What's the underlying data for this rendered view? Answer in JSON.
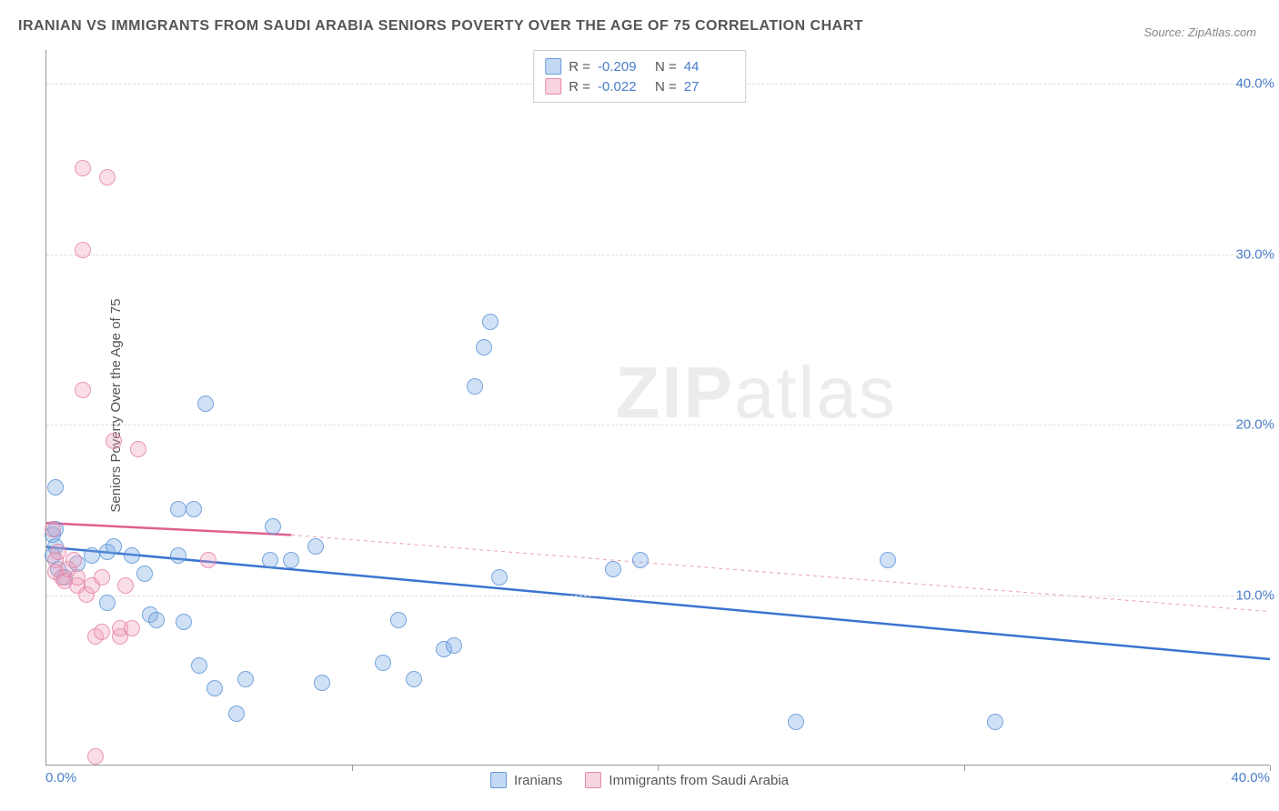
{
  "title": "IRANIAN VS IMMIGRANTS FROM SAUDI ARABIA SENIORS POVERTY OVER THE AGE OF 75 CORRELATION CHART",
  "source": "Source: ZipAtlas.com",
  "y_axis_label": "Seniors Poverty Over the Age of 75",
  "watermark_bold": "ZIP",
  "watermark_rest": "atlas",
  "chart": {
    "type": "scatter",
    "background_color": "#ffffff",
    "grid_color": "#dddddd",
    "axis_color": "#999999",
    "xlim": [
      0,
      40
    ],
    "ylim": [
      0,
      42
    ],
    "x_ticks": [
      0,
      10,
      20,
      30,
      40
    ],
    "x_tick_labels": [
      "0.0%",
      "",
      "",
      "",
      "40.0%"
    ],
    "y_ticks": [
      10,
      20,
      30,
      40
    ],
    "y_tick_labels": [
      "10.0%",
      "20.0%",
      "30.0%",
      "40.0%"
    ],
    "tick_color": "#4a7dc9",
    "tick_fontsize": 15,
    "label_fontsize": 15,
    "title_fontsize": 16,
    "marker_radius": 9,
    "series": [
      {
        "name": "Iranians",
        "color_fill": "rgba(120,170,230,0.35)",
        "color_stroke": "rgba(80,140,210,0.7)",
        "correlation_r": "-0.209",
        "correlation_n": "44",
        "trend_line": {
          "x1": 0,
          "y1": 12.8,
          "x2": 40,
          "y2": 6.2,
          "color": "#3a74d0",
          "width": 2.5,
          "dash": "none"
        },
        "points": [
          {
            "x": 0.3,
            "y": 16.3
          },
          {
            "x": 0.2,
            "y": 13.5
          },
          {
            "x": 0.3,
            "y": 12.8
          },
          {
            "x": 0.2,
            "y": 12.3
          },
          {
            "x": 0.4,
            "y": 11.5
          },
          {
            "x": 0.6,
            "y": 11.0
          },
          {
            "x": 0.3,
            "y": 13.8
          },
          {
            "x": 1.5,
            "y": 12.3
          },
          {
            "x": 2.0,
            "y": 12.5
          },
          {
            "x": 2.2,
            "y": 12.8
          },
          {
            "x": 2.8,
            "y": 12.3
          },
          {
            "x": 2.0,
            "y": 9.5
          },
          {
            "x": 3.2,
            "y": 11.2
          },
          {
            "x": 3.4,
            "y": 8.8
          },
          {
            "x": 3.6,
            "y": 8.5
          },
          {
            "x": 4.3,
            "y": 15.0
          },
          {
            "x": 4.8,
            "y": 15.0
          },
          {
            "x": 4.3,
            "y": 12.3
          },
          {
            "x": 4.5,
            "y": 8.4
          },
          {
            "x": 5.0,
            "y": 5.8
          },
          {
            "x": 5.2,
            "y": 21.2
          },
          {
            "x": 6.2,
            "y": 3.0
          },
          {
            "x": 6.5,
            "y": 5.0
          },
          {
            "x": 7.3,
            "y": 12.0
          },
          {
            "x": 7.4,
            "y": 14.0
          },
          {
            "x": 8.0,
            "y": 12.0
          },
          {
            "x": 8.8,
            "y": 12.8
          },
          {
            "x": 9.0,
            "y": 4.8
          },
          {
            "x": 11.0,
            "y": 6.0
          },
          {
            "x": 11.5,
            "y": 8.5
          },
          {
            "x": 12.0,
            "y": 5.0
          },
          {
            "x": 13.0,
            "y": 6.8
          },
          {
            "x": 13.3,
            "y": 7.0
          },
          {
            "x": 14.0,
            "y": 22.2
          },
          {
            "x": 14.3,
            "y": 24.5
          },
          {
            "x": 14.5,
            "y": 26.0
          },
          {
            "x": 14.8,
            "y": 11.0
          },
          {
            "x": 18.5,
            "y": 11.5
          },
          {
            "x": 19.4,
            "y": 12.0
          },
          {
            "x": 24.5,
            "y": 2.5
          },
          {
            "x": 27.5,
            "y": 12.0
          },
          {
            "x": 31.0,
            "y": 2.5
          },
          {
            "x": 5.5,
            "y": 4.5
          },
          {
            "x": 1.0,
            "y": 11.8
          }
        ]
      },
      {
        "name": "Immigrants from Saudi Arabia",
        "color_fill": "rgba(240,160,185,0.35)",
        "color_stroke": "rgba(225,120,160,0.7)",
        "correlation_r": "-0.022",
        "correlation_n": "27",
        "trend_line_solid": {
          "x1": 0,
          "y1": 14.2,
          "x2": 8.0,
          "y2": 13.5,
          "color": "#e06090",
          "width": 2.5
        },
        "trend_line_dashed": {
          "x1": 8.0,
          "y1": 13.5,
          "x2": 40,
          "y2": 9.0,
          "color": "#e8a0b8",
          "width": 1,
          "dash": "4,4"
        },
        "points": [
          {
            "x": 0.2,
            "y": 13.8
          },
          {
            "x": 0.3,
            "y": 12.0
          },
          {
            "x": 0.3,
            "y": 11.3
          },
          {
            "x": 0.4,
            "y": 12.5
          },
          {
            "x": 0.5,
            "y": 11.0
          },
          {
            "x": 0.6,
            "y": 10.8
          },
          {
            "x": 0.7,
            "y": 11.5
          },
          {
            "x": 0.9,
            "y": 12.0
          },
          {
            "x": 1.0,
            "y": 10.5
          },
          {
            "x": 1.0,
            "y": 11.0
          },
          {
            "x": 1.2,
            "y": 22.0
          },
          {
            "x": 1.2,
            "y": 30.2
          },
          {
            "x": 1.2,
            "y": 35.0
          },
          {
            "x": 1.3,
            "y": 10.0
          },
          {
            "x": 1.5,
            "y": 10.5
          },
          {
            "x": 1.6,
            "y": 7.5
          },
          {
            "x": 1.8,
            "y": 7.8
          },
          {
            "x": 1.8,
            "y": 11.0
          },
          {
            "x": 2.0,
            "y": 34.5
          },
          {
            "x": 2.2,
            "y": 19.0
          },
          {
            "x": 2.4,
            "y": 7.5
          },
          {
            "x": 2.4,
            "y": 8.0
          },
          {
            "x": 2.6,
            "y": 10.5
          },
          {
            "x": 3.0,
            "y": 18.5
          },
          {
            "x": 2.8,
            "y": 8.0
          },
          {
            "x": 5.3,
            "y": 12.0
          },
          {
            "x": 1.6,
            "y": 0.5
          }
        ]
      }
    ]
  },
  "legend_top": {
    "r_label": "R =",
    "n_label": "N ="
  },
  "legend_bottom_labels": {
    "series1": "Iranians",
    "series2": "Immigrants from Saudi Arabia"
  }
}
